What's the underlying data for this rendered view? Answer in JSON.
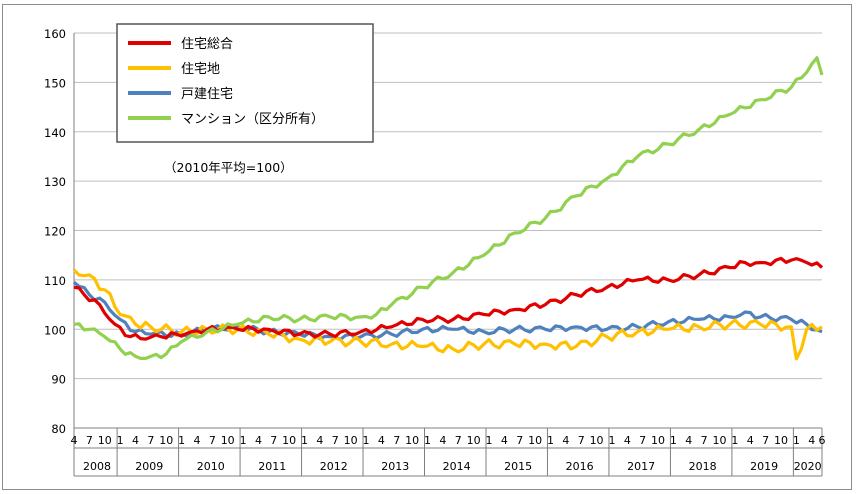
{
  "chart_data": {
    "type": "line",
    "note": "（2010年平均=100）",
    "ylim": [
      80,
      160
    ],
    "yticks": [
      80,
      90,
      100,
      110,
      120,
      130,
      140,
      150,
      160
    ],
    "grid": true,
    "legend_position": "top-left",
    "month_tick_labels": [
      "1",
      "4",
      "7",
      "10"
    ],
    "year_labels": [
      "2008",
      "2009",
      "2010",
      "2011",
      "2012",
      "2013",
      "2014",
      "2015",
      "2016",
      "2017",
      "2018",
      "2019",
      "2020"
    ],
    "x_start": "2008-04",
    "x_end": "2020-06",
    "series": [
      {
        "name": "住宅総合",
        "color": "#e00000",
        "anchors": [
          [
            "2008-04",
            108.5
          ],
          [
            "2008-06",
            107
          ],
          [
            "2008-09",
            105
          ],
          [
            "2008-12",
            101
          ],
          [
            "2009-03",
            98.5
          ],
          [
            "2009-06",
            98
          ],
          [
            "2009-09",
            98.5
          ],
          [
            "2009-12",
            99
          ],
          [
            "2010-03",
            99.5
          ],
          [
            "2010-06",
            100
          ],
          [
            "2010-09",
            100
          ],
          [
            "2010-12",
            100
          ],
          [
            "2011-06",
            100
          ],
          [
            "2011-12",
            99
          ],
          [
            "2012-06",
            99
          ],
          [
            "2012-12",
            99.5
          ],
          [
            "2013-06",
            100.5
          ],
          [
            "2013-12",
            102
          ],
          [
            "2014-06",
            102
          ],
          [
            "2014-12",
            103
          ],
          [
            "2015-06",
            104
          ],
          [
            "2015-12",
            105
          ],
          [
            "2016-06",
            107
          ],
          [
            "2016-12",
            108.5
          ],
          [
            "2017-06",
            110
          ],
          [
            "2017-12",
            110
          ],
          [
            "2018-06",
            111
          ],
          [
            "2018-12",
            112.5
          ],
          [
            "2019-03",
            113.5
          ],
          [
            "2019-06",
            113.5
          ],
          [
            "2019-12",
            114
          ],
          [
            "2020-03",
            113.5
          ],
          [
            "2020-06",
            112.5
          ]
        ]
      },
      {
        "name": "住宅地",
        "color": "#ffc000",
        "anchors": [
          [
            "2008-04",
            112
          ],
          [
            "2008-07",
            111
          ],
          [
            "2008-10",
            108
          ],
          [
            "2009-01",
            103
          ],
          [
            "2009-04",
            101
          ],
          [
            "2009-07",
            100.5
          ],
          [
            "2010-01",
            99.5
          ],
          [
            "2010-06",
            100
          ],
          [
            "2010-12",
            100
          ],
          [
            "2011-06",
            99
          ],
          [
            "2011-12",
            98
          ],
          [
            "2012-06",
            97.5
          ],
          [
            "2012-12",
            97.5
          ],
          [
            "2013-06",
            97
          ],
          [
            "2013-12",
            96.5
          ],
          [
            "2014-06",
            96
          ],
          [
            "2014-12",
            97
          ],
          [
            "2015-06",
            97
          ],
          [
            "2015-12",
            97
          ],
          [
            "2016-06",
            96.5
          ],
          [
            "2016-12",
            98.5
          ],
          [
            "2017-06",
            99.5
          ],
          [
            "2017-12",
            100
          ],
          [
            "2018-06",
            100.5
          ],
          [
            "2018-12",
            101
          ],
          [
            "2019-06",
            101
          ],
          [
            "2019-12",
            100.5
          ],
          [
            "2020-01",
            94
          ],
          [
            "2020-03",
            100
          ],
          [
            "2020-06",
            100.5
          ]
        ]
      },
      {
        "name": "戸建住宅",
        "color": "#4f81bd",
        "anchors": [
          [
            "2008-04",
            109.5
          ],
          [
            "2008-07",
            107
          ],
          [
            "2008-10",
            105.5
          ],
          [
            "2009-01",
            102
          ],
          [
            "2009-04",
            99.5
          ],
          [
            "2009-07",
            99
          ],
          [
            "2010-01",
            99
          ],
          [
            "2010-06",
            100
          ],
          [
            "2010-12",
            100.5
          ],
          [
            "2011-06",
            99.5
          ],
          [
            "2011-12",
            99
          ],
          [
            "2012-06",
            98.5
          ],
          [
            "2012-12",
            98.5
          ],
          [
            "2013-06",
            99
          ],
          [
            "2013-12",
            100
          ],
          [
            "2014-06",
            100
          ],
          [
            "2014-12",
            99.5
          ],
          [
            "2015-06",
            100
          ],
          [
            "2015-12",
            100
          ],
          [
            "2016-06",
            100.5
          ],
          [
            "2016-12",
            100
          ],
          [
            "2017-06",
            100.5
          ],
          [
            "2017-12",
            101.5
          ],
          [
            "2018-06",
            102
          ],
          [
            "2018-12",
            102.5
          ],
          [
            "2019-03",
            103.5
          ],
          [
            "2019-06",
            102.5
          ],
          [
            "2019-12",
            102
          ],
          [
            "2020-03",
            101
          ],
          [
            "2020-06",
            99.5
          ]
        ]
      },
      {
        "name": "マンション（区分所有）",
        "color": "#92d050",
        "anchors": [
          [
            "2008-04",
            101
          ],
          [
            "2008-07",
            100
          ],
          [
            "2008-10",
            98.5
          ],
          [
            "2009-01",
            96
          ],
          [
            "2009-04",
            94.5
          ],
          [
            "2009-07",
            94.5
          ],
          [
            "2009-10",
            95
          ],
          [
            "2010-01",
            97.5
          ],
          [
            "2010-06",
            99.5
          ],
          [
            "2010-12",
            101
          ],
          [
            "2011-06",
            102.5
          ],
          [
            "2011-12",
            102
          ],
          [
            "2012-06",
            102.5
          ],
          [
            "2012-12",
            102.5
          ],
          [
            "2013-03",
            103
          ],
          [
            "2013-06",
            105
          ],
          [
            "2013-12",
            108.5
          ],
          [
            "2014-06",
            111.5
          ],
          [
            "2014-12",
            115
          ],
          [
            "2015-06",
            119.5
          ],
          [
            "2015-12",
            122.5
          ],
          [
            "2016-06",
            127
          ],
          [
            "2016-12",
            130.5
          ],
          [
            "2017-06",
            135
          ],
          [
            "2017-12",
            137.5
          ],
          [
            "2018-06",
            140.5
          ],
          [
            "2018-12",
            143.5
          ],
          [
            "2019-06",
            146.5
          ],
          [
            "2019-12",
            149
          ],
          [
            "2020-03",
            152
          ],
          [
            "2020-05",
            155
          ],
          [
            "2020-06",
            151.5
          ]
        ]
      }
    ]
  }
}
